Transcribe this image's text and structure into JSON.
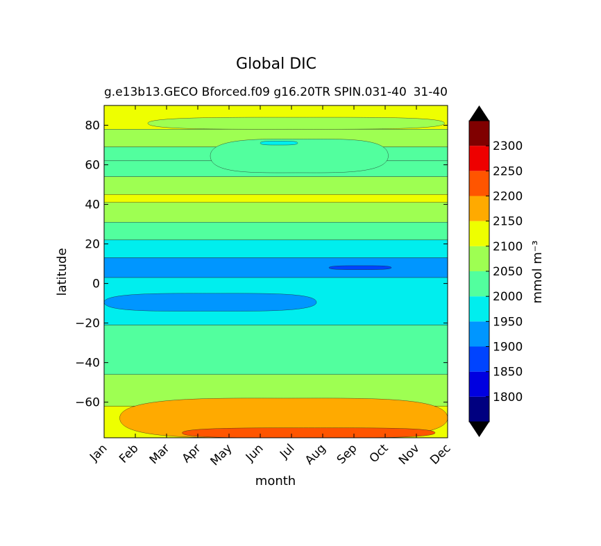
{
  "chart_data": {
    "type": "heatmap",
    "title": "Global DIC",
    "subtitle_left": "g.e13b13.GECO Bforced.f09 g16.20TR SPIN.031-40",
    "subtitle_right": "31-40",
    "xlabel": "month",
    "ylabel": "latitude",
    "x_categories": [
      "Jan",
      "Feb",
      "Mar",
      "Apr",
      "May",
      "Jun",
      "Jul",
      "Aug",
      "Sep",
      "Oct",
      "Nov",
      "Dec"
    ],
    "y_ticks": [
      "80",
      "60",
      "40",
      "20",
      "0",
      "−20",
      "−40",
      "−60"
    ],
    "y_tick_values": [
      80,
      60,
      40,
      20,
      0,
      -20,
      -40,
      -60
    ],
    "ylim": [
      -78,
      90
    ],
    "colorbar": {
      "label": "mmol m⁻³",
      "levels": [
        1750,
        1800,
        1850,
        1900,
        1950,
        2000,
        2050,
        2100,
        2150,
        2200,
        2250,
        2300,
        2350
      ],
      "tick_labels": [
        "1800",
        "1850",
        "1900",
        "1950",
        "2000",
        "2050",
        "2100",
        "2150",
        "2200",
        "2250",
        "2300"
      ],
      "colors": [
        "#000080",
        "#0000e0",
        "#0044ff",
        "#0096ff",
        "#00eeee",
        "#52ff9e",
        "#9eff52",
        "#eeff00",
        "#ffaa00",
        "#ff5500",
        "#ee0000",
        "#800000"
      ],
      "under_color": "#000000",
      "over_color": "#000000"
    },
    "bands": [
      {
        "lat_top": 90,
        "lat_bottom": 78,
        "value": 2125
      },
      {
        "lat_top": 78,
        "lat_bottom": 69,
        "value": 2075
      },
      {
        "lat_top": 69,
        "lat_bottom": 62,
        "value": 2025
      },
      {
        "lat_top": 62,
        "lat_bottom": 54,
        "value": 2025
      },
      {
        "lat_top": 54,
        "lat_bottom": 45,
        "value": 2075
      },
      {
        "lat_top": 45,
        "lat_bottom": 41,
        "value": 2125
      },
      {
        "lat_top": 41,
        "lat_bottom": 31,
        "value": 2075
      },
      {
        "lat_top": 31,
        "lat_bottom": 22,
        "value": 2025
      },
      {
        "lat_top": 22,
        "lat_bottom": 13,
        "value": 1975
      },
      {
        "lat_top": 13,
        "lat_bottom": 3,
        "value": 1925
      },
      {
        "lat_top": 3,
        "lat_bottom": -21,
        "value": 1975
      },
      {
        "lat_top": -21,
        "lat_bottom": -46,
        "value": 2025
      },
      {
        "lat_top": -46,
        "lat_bottom": -62,
        "value": 2075
      },
      {
        "lat_top": -62,
        "lat_bottom": -78,
        "value": 2125
      }
    ],
    "features": [
      {
        "name": "arctic-green-tongue",
        "value": 2075,
        "months": [
          2.4,
          5.5,
          9,
          11.9
        ],
        "lat_top": 84,
        "lat_bottom": 78
      },
      {
        "name": "high-lat-cyan-core",
        "value": 2025,
        "months": [
          4.4,
          5.5,
          9.3,
          10.1
        ],
        "lat_top": 73,
        "lat_bottom": 56
      },
      {
        "name": "high-lat-blue-spot",
        "value": 1975,
        "months": [
          6.0,
          7.2
        ],
        "lat_top": 72,
        "lat_bottom": 70
      },
      {
        "name": "equatorial-core",
        "value": 1875,
        "months": [
          8.2,
          10.2
        ],
        "lat_top": 9,
        "lat_bottom": 7
      },
      {
        "name": "south-tropic-blue",
        "value": 1925,
        "months": [
          1.0,
          7.8
        ],
        "lat_top": -5,
        "lat_bottom": -14
      },
      {
        "name": "southern-orange",
        "value": 2175,
        "months": [
          1.5,
          12
        ],
        "lat_top": -58,
        "lat_bottom": -78
      },
      {
        "name": "southern-red",
        "value": 2225,
        "months": [
          3.5,
          11.6
        ],
        "lat_top": -73,
        "lat_bottom": -78
      }
    ]
  }
}
